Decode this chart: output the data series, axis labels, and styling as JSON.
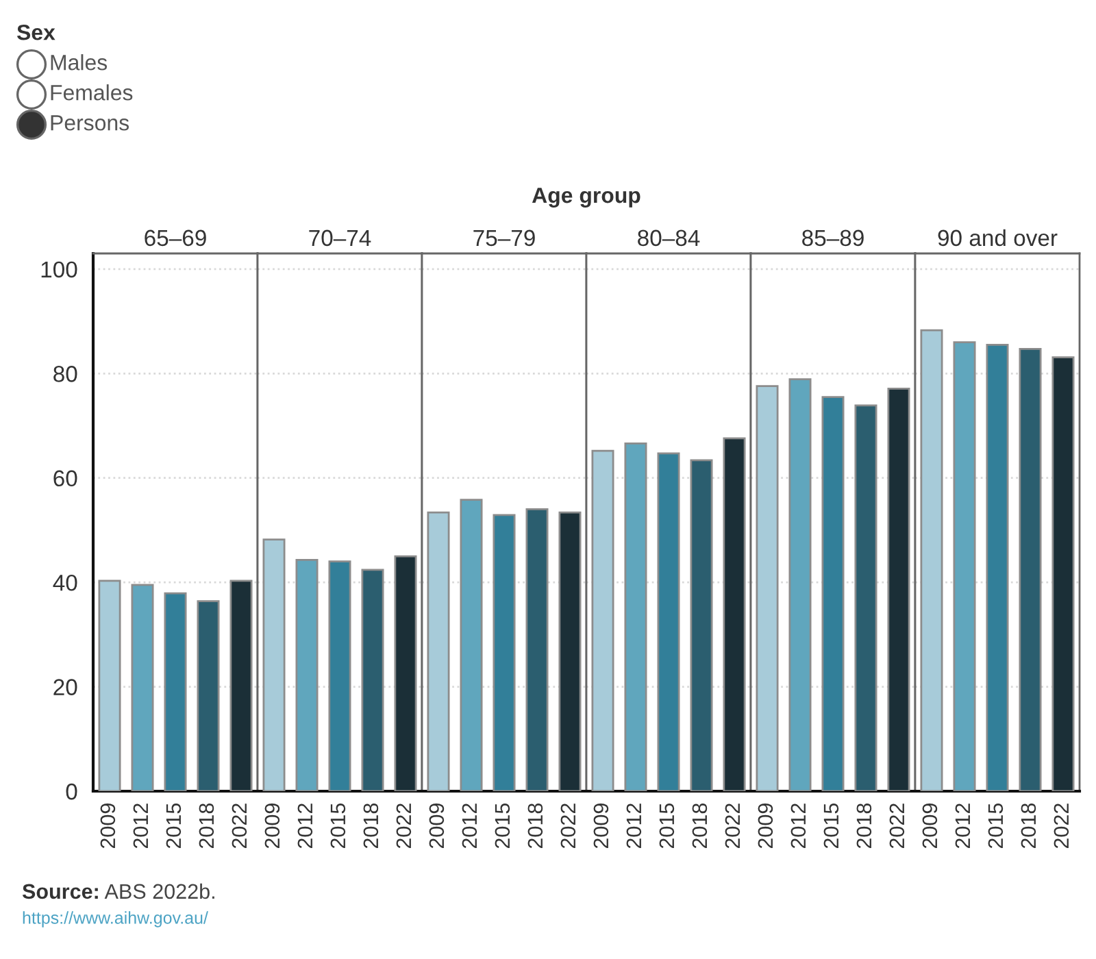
{
  "chart_data": [
    {
      "type": "other",
      "title": "Sex",
      "categories": [
        "Males",
        "Females",
        "Persons"
      ],
      "colors": [
        "#ffffff",
        "#ffffff",
        "#333333"
      ]
    },
    {
      "type": "other",
      "title": "Age group"
    },
    {
      "type": "bar",
      "title": "65–69",
      "categories": [
        "2009",
        "2012",
        "2015",
        "2018",
        "2022"
      ],
      "values": [
        40.3,
        39.5,
        37.9,
        36.4,
        40.3
      ],
      "colors": [
        "#a7cbd9",
        "#60a6bd",
        "#327f99",
        "#2b5e6f",
        "#1b2f37"
      ],
      "ylim": [
        0,
        103
      ],
      "yticks": [
        0,
        20,
        40,
        60,
        80,
        100
      ],
      "grid": "y"
    },
    {
      "type": "bar",
      "title": "70–74",
      "categories": [
        "2009",
        "2012",
        "2015",
        "2018",
        "2022"
      ],
      "values": [
        48.2,
        44.3,
        44.0,
        42.4,
        45.0
      ],
      "colors": [
        "#a7cbd9",
        "#60a6bd",
        "#327f99",
        "#2b5e6f",
        "#1b2f37"
      ],
      "ylim": [
        0,
        103
      ],
      "yticks": [
        0,
        20,
        40,
        60,
        80,
        100
      ],
      "grid": "y",
      "tick_labels": "x"
    },
    {
      "type": "bar",
      "title": "75–79",
      "categories": [
        "2009",
        "2012",
        "2015",
        "2018",
        "2022"
      ],
      "values": [
        53.4,
        55.8,
        52.9,
        54.0,
        53.4
      ],
      "colors": [
        "#a7cbd9",
        "#60a6bd",
        "#327f99",
        "#2b5e6f",
        "#1b2f37"
      ],
      "ylim": [
        0,
        103
      ],
      "yticks": [
        0,
        20,
        40,
        60,
        80,
        100
      ],
      "grid": "y",
      "tick_labels": "x"
    },
    {
      "type": "bar",
      "title": "80–84",
      "categories": [
        "2009",
        "2012",
        "2015",
        "2018",
        "2022"
      ],
      "values": [
        65.2,
        66.6,
        64.7,
        63.4,
        67.6
      ],
      "colors": [
        "#a7cbd9",
        "#60a6bd",
        "#327f99",
        "#2b5e6f",
        "#1b2f37"
      ],
      "ylim": [
        0,
        103
      ],
      "yticks": [
        0,
        20,
        40,
        60,
        80,
        100
      ],
      "grid": "y",
      "tick_labels": "x"
    },
    {
      "type": "bar",
      "title": "85–89",
      "categories": [
        "2009",
        "2012",
        "2015",
        "2018",
        "2022"
      ],
      "values": [
        77.6,
        78.9,
        75.5,
        73.9,
        77.1
      ],
      "colors": [
        "#a7cbd9",
        "#60a6bd",
        "#327f99",
        "#2b5e6f",
        "#1b2f37"
      ],
      "ylim": [
        0,
        103
      ],
      "yticks": [
        0,
        20,
        40,
        60,
        80,
        100
      ],
      "grid": "y",
      "tick_labels": "x"
    },
    {
      "type": "bar",
      "title": "90 and over",
      "categories": [
        "2009",
        "2012",
        "2015",
        "2018",
        "2022"
      ],
      "values": [
        88.3,
        86.0,
        85.5,
        84.7,
        83.1
      ],
      "colors": [
        "#a7cbd9",
        "#60a6bd",
        "#327f99",
        "#2b5e6f",
        "#1b2f37"
      ],
      "ylim": [
        0,
        103
      ],
      "yticks": [
        0,
        20,
        40,
        60,
        80,
        100
      ],
      "grid": "y",
      "tick_labels": "x"
    },
    {
      "type": "other",
      "annotations": [
        "Source: ABS 2022b.",
        "https://www.aihw.gov.au/"
      ]
    }
  ]
}
